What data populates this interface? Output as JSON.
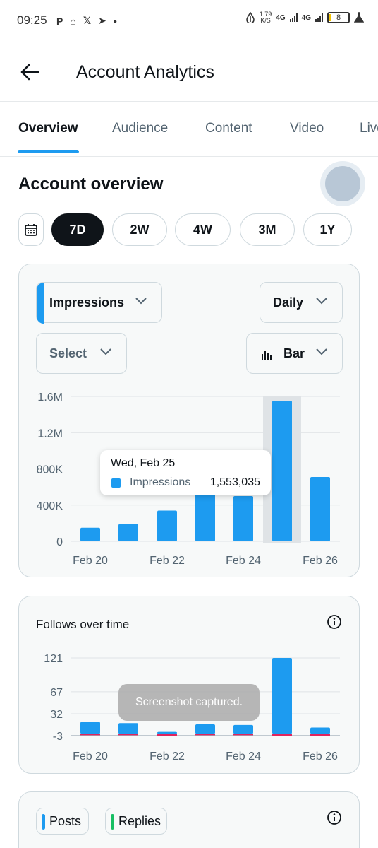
{
  "status_bar": {
    "time": "09:25",
    "speed_value": "1.79",
    "speed_unit": "K/S",
    "net1": "4G",
    "net2": "4G",
    "battery": "8"
  },
  "header": {
    "title": "Account Analytics"
  },
  "tabs": [
    {
      "label": "Overview",
      "active": true
    },
    {
      "label": "Audience",
      "active": false
    },
    {
      "label": "Content",
      "active": false
    },
    {
      "label": "Video",
      "active": false
    },
    {
      "label": "Live",
      "active": false
    }
  ],
  "overview": {
    "title": "Account overview"
  },
  "ranges": [
    {
      "label": "7D",
      "active": true
    },
    {
      "label": "2W",
      "active": false
    },
    {
      "label": "4W",
      "active": false
    },
    {
      "label": "3M",
      "active": false
    },
    {
      "label": "1Y",
      "active": false
    }
  ],
  "controls": {
    "metric": "Impressions",
    "interval": "Daily",
    "compare": "Select",
    "chart_type": "Bar"
  },
  "tooltip": {
    "date": "Wed, Feb 25",
    "label": "Impressions",
    "value": "1,553,035"
  },
  "follows": {
    "title": "Follows over time"
  },
  "toast": "Screenshot captured.",
  "chips": [
    {
      "label": "Posts",
      "color": "#1d9bf0"
    },
    {
      "label": "Replies",
      "color": "#17bf63"
    }
  ],
  "colors": {
    "accent": "#1d9bf0",
    "negative": "#e0245e"
  },
  "chart_data": [
    {
      "type": "bar",
      "ylim": [
        0,
        1600000
      ],
      "yticks": [
        "1.6M",
        "1.2M",
        "800K",
        "400K",
        "0"
      ],
      "xtick_labels": [
        "Feb 20",
        "Feb 22",
        "Feb 24",
        "Feb 26"
      ],
      "categories": [
        "Feb 20",
        "Feb 21",
        "Feb 22",
        "Feb 23",
        "Feb 24",
        "Feb 25",
        "Feb 26"
      ],
      "series": [
        {
          "name": "Impressions",
          "values": [
            150000,
            190000,
            340000,
            610000,
            500000,
            1553035,
            710000
          ]
        }
      ],
      "highlight_index": 5
    },
    {
      "type": "bar",
      "title": "Follows over time",
      "ylim": [
        -3,
        121
      ],
      "yticks": [
        "121",
        "67",
        "32",
        "-3"
      ],
      "xtick_labels": [
        "Feb 20",
        "Feb 22",
        "Feb 24",
        "Feb 26"
      ],
      "categories": [
        "Feb 20",
        "Feb 21",
        "Feb 22",
        "Feb 23",
        "Feb 24",
        "Feb 25",
        "Feb 26"
      ],
      "series": [
        {
          "values": [
            19,
            17,
            3,
            15,
            14,
            121,
            10
          ]
        },
        {
          "values": [
            -2,
            -2,
            -3,
            -1,
            -1,
            -3,
            -3
          ]
        }
      ]
    }
  ]
}
